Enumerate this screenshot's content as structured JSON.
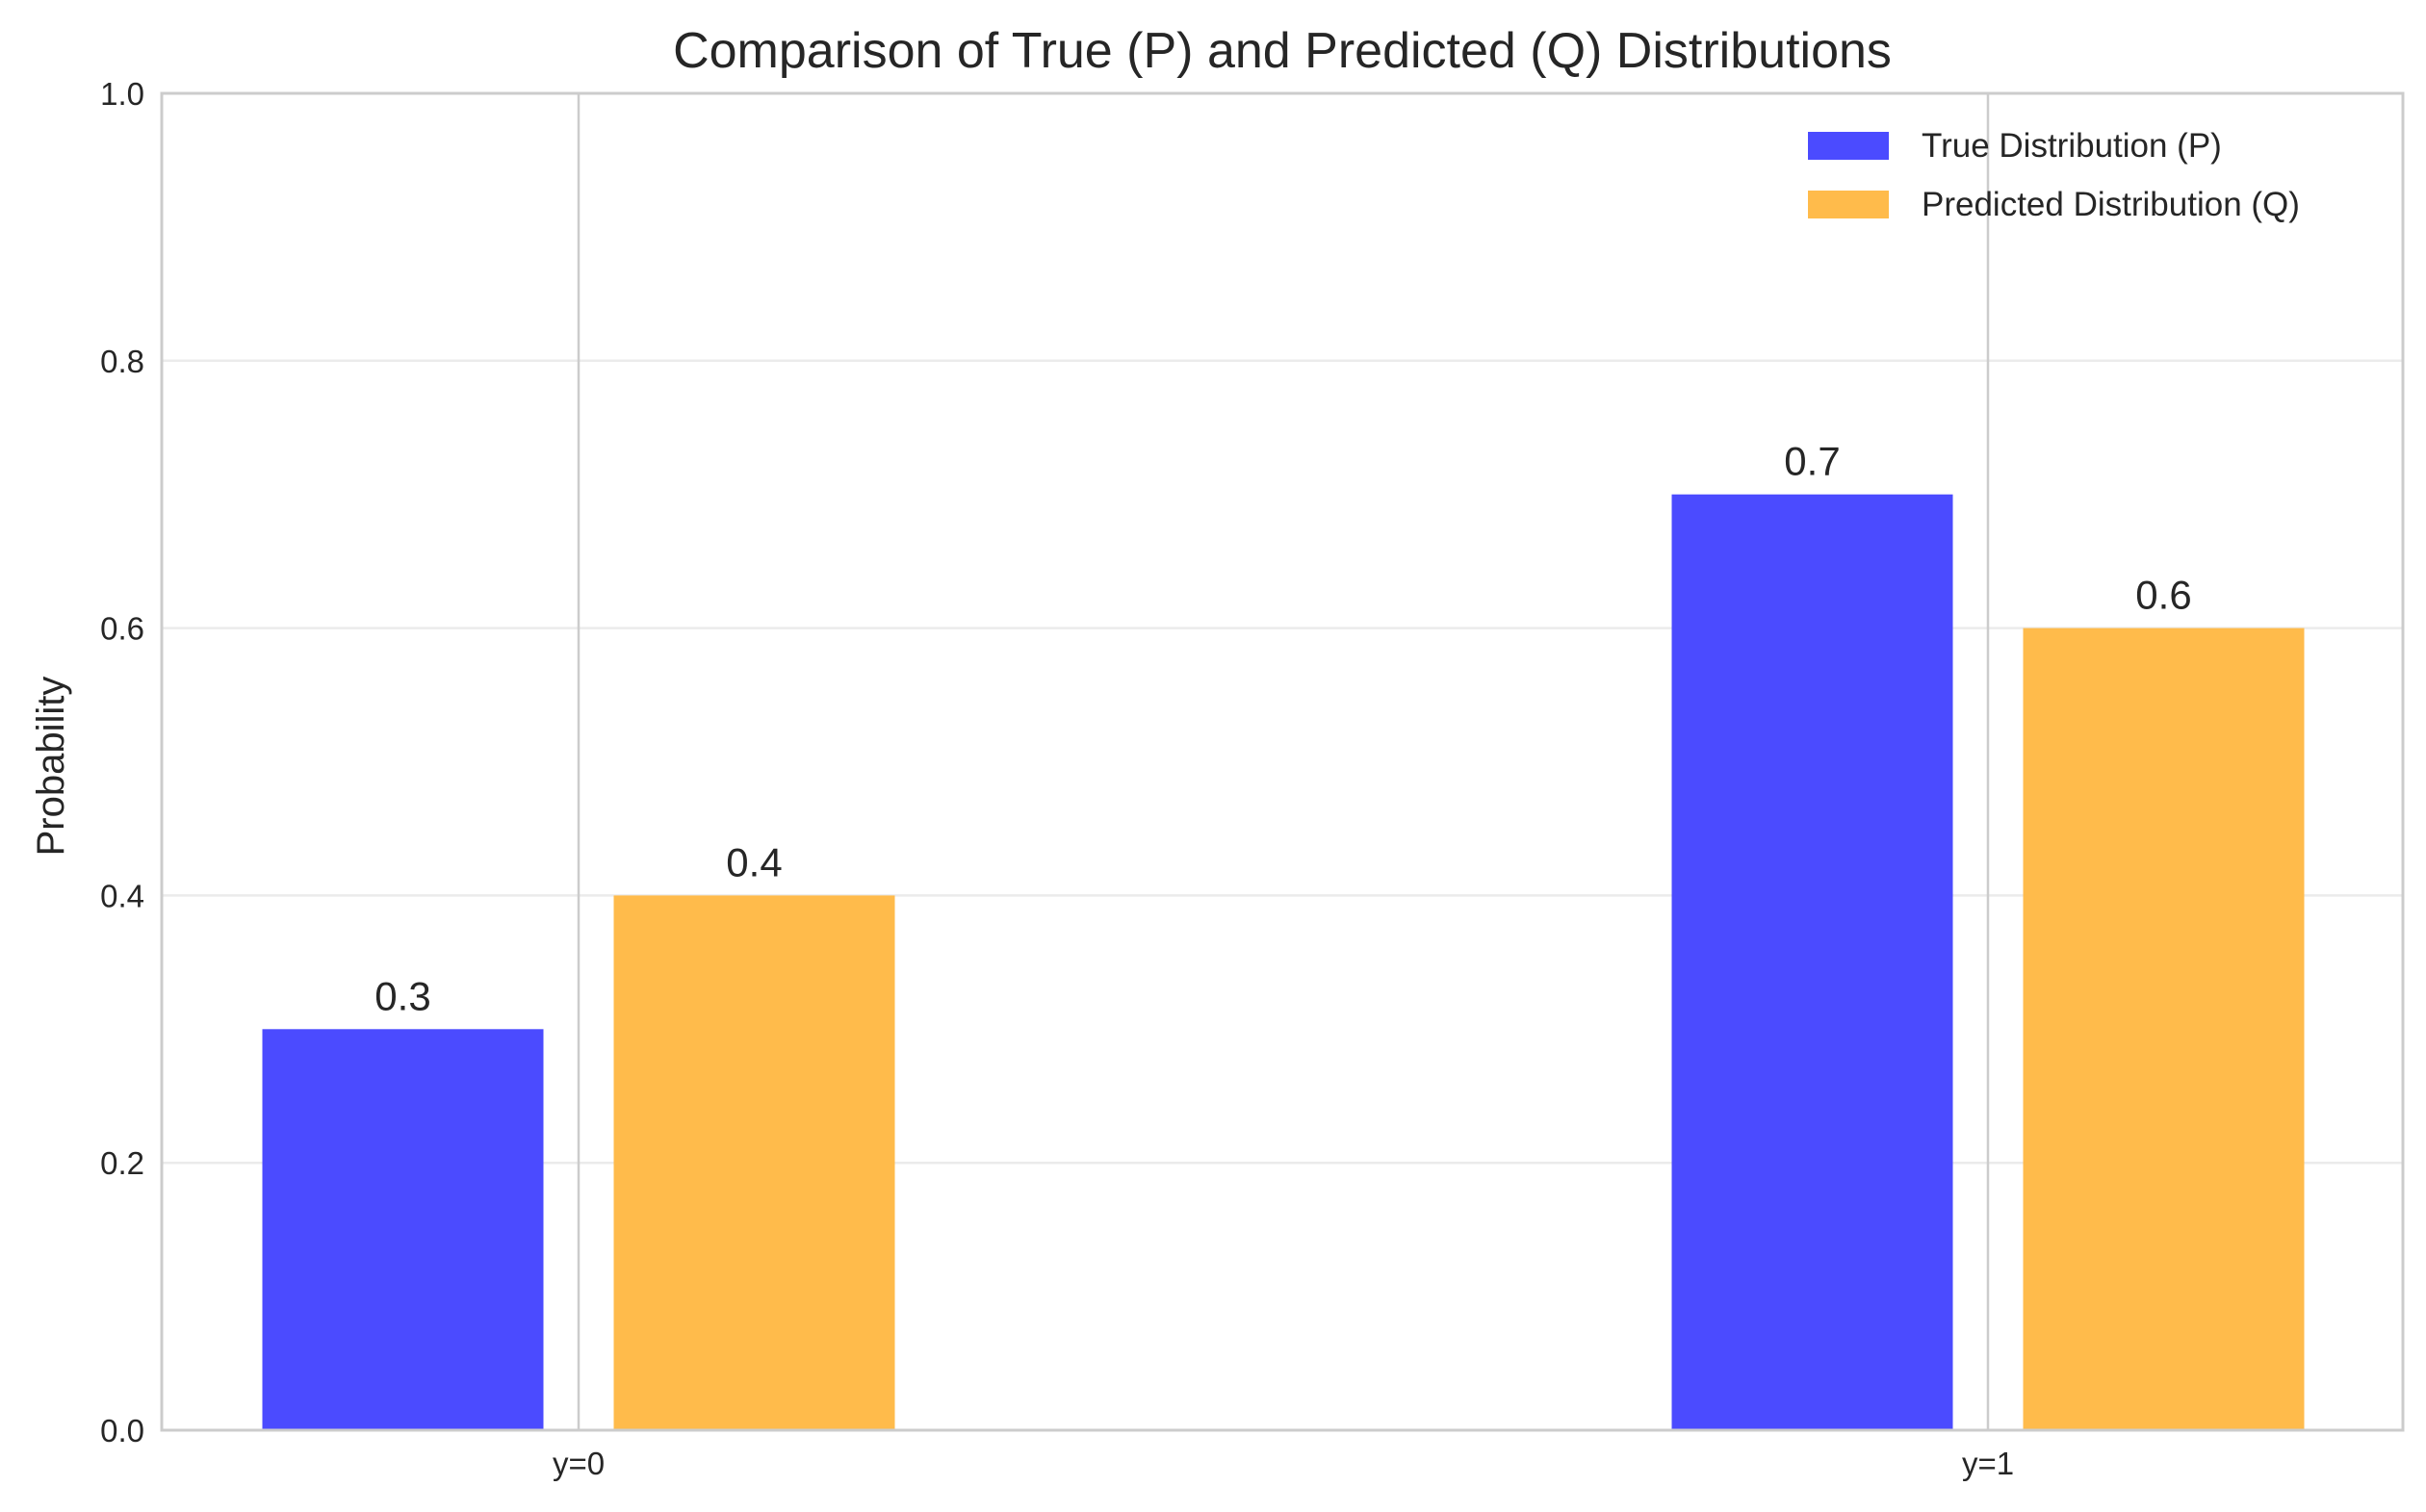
{
  "chart_data": {
    "type": "bar",
    "title": "Comparison of True (P) and Predicted (Q) Distributions",
    "xlabel": "",
    "ylabel": "Probability",
    "categories": [
      "y=0",
      "y=1"
    ],
    "series": [
      {
        "name": "True Distribution (P)",
        "values": [
          0.3,
          0.7
        ],
        "color": "#4b4bff"
      },
      {
        "name": "Predicted Distribution (Q)",
        "values": [
          0.4,
          0.6
        ],
        "color": "#ffbb4b"
      }
    ],
    "data_labels": [
      [
        "0.3",
        "0.7"
      ],
      [
        "0.4",
        "0.6"
      ]
    ],
    "ylim": [
      0,
      1.0
    ],
    "yticks": [
      0.0,
      0.2,
      0.4,
      0.6,
      0.8,
      1.0
    ],
    "ytick_labels": [
      "0.0",
      "0.2",
      "0.4",
      "0.6",
      "0.8",
      "1.0"
    ],
    "grid": true,
    "legend": "top-right"
  }
}
